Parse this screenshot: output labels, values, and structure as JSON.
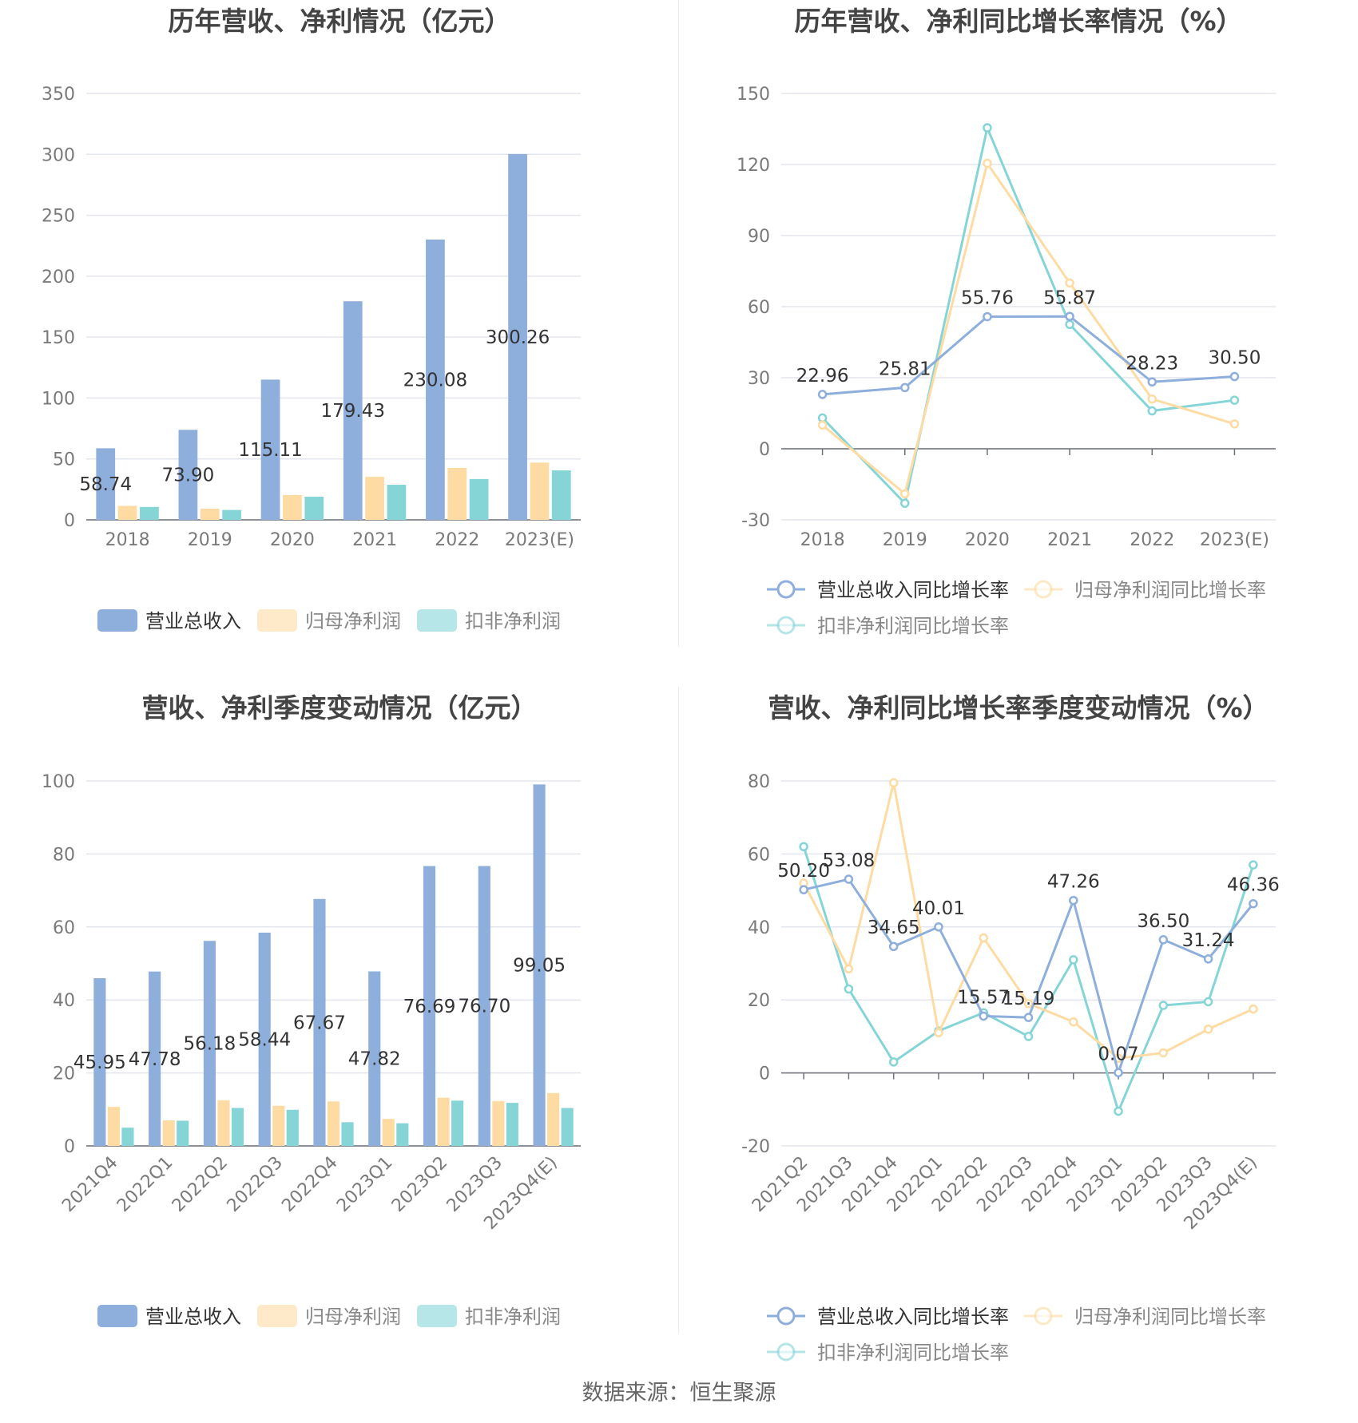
{
  "colors": {
    "revenue": "#8eaedc",
    "net_profit": "#fedba3",
    "deducted_net_profit": "#85d5d7",
    "grid": "#e3e6ee",
    "axis_text": "#7a7a7a",
    "title": "#444444",
    "label": "#333333"
  },
  "source": "数据来源：恒生聚源",
  "chart_data": [
    {
      "type": "bar",
      "title": "历年营收、净利情况（亿元）",
      "categories": [
        "2018",
        "2019",
        "2020",
        "2021",
        "2022",
        "2023(E)"
      ],
      "ylim": [
        0,
        350
      ],
      "yticks": [
        0,
        50,
        100,
        150,
        200,
        250,
        300,
        350
      ],
      "grid": true,
      "legend": "bottom",
      "series": [
        {
          "name": "营业总收入",
          "color_key": "revenue",
          "values": [
            58.74,
            73.9,
            115.11,
            179.43,
            230.08,
            300.26
          ],
          "labels": [
            "58.74",
            "73.90",
            "115.11",
            "179.43",
            "230.08",
            "300.26"
          ]
        },
        {
          "name": "归母净利润",
          "color_key": "net_profit",
          "values": [
            11.5,
            9.2,
            20.4,
            35.3,
            42.6,
            47.0
          ]
        },
        {
          "name": "扣非净利润",
          "color_key": "deducted_net_profit",
          "values": [
            10.6,
            8.1,
            19.0,
            28.8,
            33.5,
            40.6
          ]
        }
      ]
    },
    {
      "type": "line",
      "title": "历年营收、净利同比增长率情况（%）",
      "categories": [
        "2018",
        "2019",
        "2020",
        "2021",
        "2022",
        "2023(E)"
      ],
      "ylim": [
        -30,
        150
      ],
      "yticks": [
        -30,
        0,
        30,
        60,
        90,
        120,
        150
      ],
      "grid": true,
      "legend": "bottom",
      "series": [
        {
          "name": "营业总收入同比增长率",
          "color_key": "revenue",
          "values": [
            22.96,
            25.81,
            55.76,
            55.87,
            28.23,
            30.5
          ],
          "labels": [
            "22.96",
            "25.81",
            "55.76",
            "55.87",
            "28.23",
            "30.50"
          ]
        },
        {
          "name": "归母净利润同比增长率",
          "color_key": "net_profit",
          "values": [
            10.0,
            -19.0,
            120.5,
            70.0,
            21.0,
            10.5
          ]
        },
        {
          "name": "扣非净利润同比增长率",
          "color_key": "deducted_net_profit",
          "values": [
            13.0,
            -23.0,
            135.5,
            52.5,
            16.0,
            20.5
          ]
        }
      ]
    },
    {
      "type": "bar",
      "title": "营收、净利季度变动情况（亿元）",
      "categories": [
        "2021Q4",
        "2022Q1",
        "2022Q2",
        "2022Q3",
        "2022Q4",
        "2023Q1",
        "2023Q2",
        "2023Q3",
        "2023Q4(E)"
      ],
      "ylim": [
        0,
        100
      ],
      "yticks": [
        0,
        20,
        40,
        60,
        80,
        100
      ],
      "grid": true,
      "legend": "bottom",
      "series": [
        {
          "name": "营业总收入",
          "color_key": "revenue",
          "values": [
            45.95,
            47.78,
            56.18,
            58.44,
            67.67,
            47.82,
            76.69,
            76.7,
            99.05
          ],
          "labels": [
            "45.95",
            "47.78",
            "56.18",
            "58.44",
            "67.67",
            "47.82",
            "76.69",
            "76.70",
            "99.05"
          ]
        },
        {
          "name": "归母净利润",
          "color_key": "net_profit",
          "values": [
            10.7,
            7.0,
            12.5,
            11.0,
            12.2,
            7.4,
            13.2,
            12.3,
            14.5
          ]
        },
        {
          "name": "扣非净利润",
          "color_key": "deducted_net_profit",
          "values": [
            5.0,
            6.9,
            10.4,
            9.9,
            6.5,
            6.2,
            12.4,
            11.8,
            10.4
          ]
        }
      ]
    },
    {
      "type": "line",
      "title": "营收、净利同比增长率季度变动情况（%）",
      "categories": [
        "2021Q2",
        "2021Q3",
        "2021Q4",
        "2022Q1",
        "2022Q2",
        "2022Q3",
        "2022Q4",
        "2023Q1",
        "2023Q2",
        "2023Q3",
        "2023Q4(E)"
      ],
      "ylim": [
        -20,
        80
      ],
      "yticks": [
        -20,
        0,
        20,
        40,
        60,
        80
      ],
      "grid": true,
      "legend": "bottom",
      "series": [
        {
          "name": "营业总收入同比增长率",
          "color_key": "revenue",
          "values": [
            50.2,
            53.08,
            34.65,
            40.01,
            15.57,
            15.19,
            47.26,
            0.07,
            36.5,
            31.24,
            46.36
          ],
          "labels": [
            "50.20",
            "53.08",
            "34.65",
            "40.01",
            "15.57",
            "15.19",
            "47.26",
            "0.07",
            "36.50",
            "31.24",
            "46.36"
          ]
        },
        {
          "name": "归母净利润同比增长率",
          "color_key": "net_profit",
          "values": [
            52.0,
            28.5,
            79.5,
            11.0,
            37.0,
            19.0,
            14.0,
            4.0,
            5.5,
            12.0,
            17.5
          ]
        },
        {
          "name": "扣非净利润同比增长率",
          "color_key": "deducted_net_profit",
          "values": [
            62.0,
            23.0,
            3.0,
            11.5,
            16.5,
            10.0,
            31.0,
            -10.5,
            18.5,
            19.5,
            57.0
          ]
        }
      ]
    }
  ]
}
